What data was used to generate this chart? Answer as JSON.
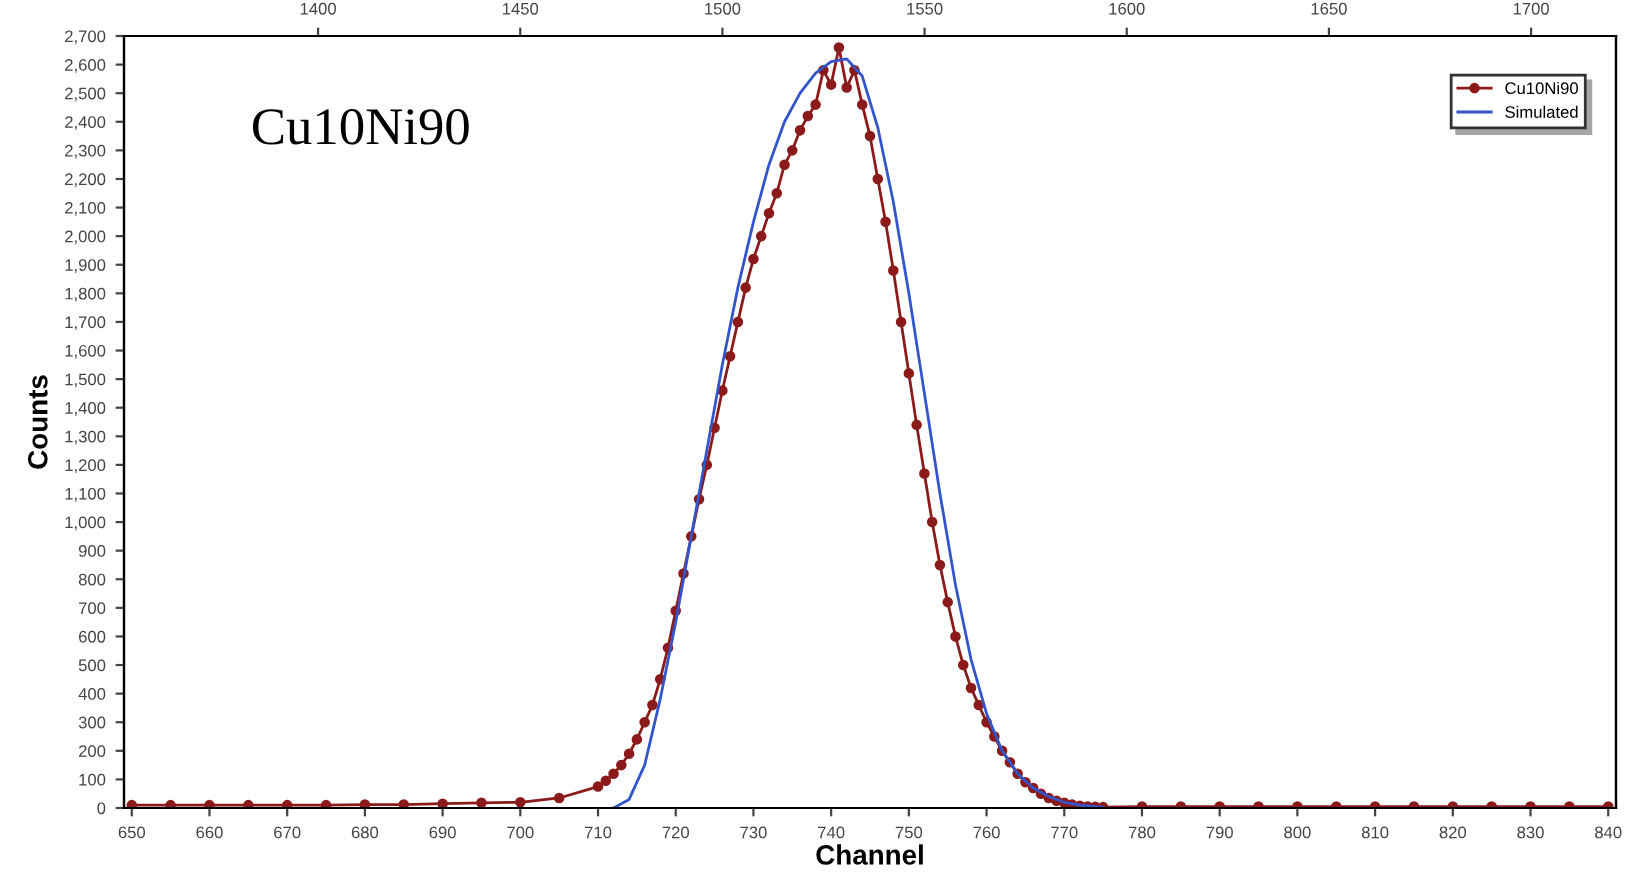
{
  "chart_data": {
    "type": "line",
    "xlabel": "Channel",
    "ylabel": "Counts",
    "annotations": [
      "Cu10Ni90"
    ],
    "xlim": [
      649,
      841
    ],
    "xticks": [
      650,
      660,
      670,
      680,
      690,
      700,
      710,
      720,
      730,
      740,
      750,
      760,
      770,
      780,
      790,
      800,
      810,
      820,
      830,
      840
    ],
    "x2lim": [
      1352,
      1721
    ],
    "x2ticks": [
      1400,
      1450,
      1500,
      1550,
      1600,
      1650,
      1700
    ],
    "ylim": [
      0,
      2700
    ],
    "yticks": [
      0,
      100,
      200,
      300,
      400,
      500,
      600,
      700,
      800,
      900,
      {
        "value": 1000,
        "label": "1,000"
      },
      {
        "value": 1100,
        "label": "1,100"
      },
      {
        "value": 1200,
        "label": "1,200"
      },
      {
        "value": 1300,
        "label": "1,300"
      },
      {
        "value": 1400,
        "label": "1,400"
      },
      {
        "value": 1500,
        "label": "1,500"
      },
      {
        "value": 1600,
        "label": "1,600"
      },
      {
        "value": 1700,
        "label": "1,700"
      },
      {
        "value": 1800,
        "label": "1,800"
      },
      {
        "value": 1900,
        "label": "1,900"
      },
      {
        "value": 2000,
        "label": "2,000"
      },
      {
        "value": 2100,
        "label": "2,100"
      },
      {
        "value": 2200,
        "label": "2,200"
      },
      {
        "value": 2300,
        "label": "2,300"
      },
      {
        "value": 2400,
        "label": "2,400"
      },
      {
        "value": 2500,
        "label": "2,500"
      },
      {
        "value": 2600,
        "label": "2,600"
      },
      {
        "value": 2700,
        "label": "2,700"
      }
    ],
    "grid": false,
    "legend": "top right",
    "series": [
      {
        "name": "Cu10Ni90",
        "color": "#8b1a1a",
        "marker": "circle",
        "x": [
          650,
          655,
          660,
          665,
          670,
          675,
          680,
          685,
          690,
          695,
          700,
          705,
          710,
          711,
          712,
          713,
          714,
          715,
          716,
          717,
          718,
          719,
          720,
          721,
          722,
          723,
          724,
          725,
          726,
          727,
          728,
          729,
          730,
          731,
          732,
          733,
          734,
          735,
          736,
          737,
          738,
          739,
          740,
          741,
          742,
          743,
          744,
          745,
          746,
          747,
          748,
          749,
          750,
          751,
          752,
          753,
          754,
          755,
          756,
          757,
          758,
          759,
          760,
          761,
          762,
          763,
          764,
          765,
          766,
          767,
          768,
          769,
          770,
          771,
          772,
          773,
          774,
          775,
          780,
          785,
          790,
          795,
          800,
          805,
          810,
          815,
          820,
          825,
          830,
          835,
          840
        ],
        "values": [
          10,
          10,
          10,
          10,
          10,
          10,
          12,
          12,
          15,
          18,
          20,
          35,
          75,
          95,
          120,
          150,
          190,
          240,
          300,
          360,
          450,
          560,
          690,
          820,
          950,
          1080,
          1200,
          1330,
          1460,
          1580,
          1700,
          1820,
          1920,
          2000,
          2080,
          2150,
          2250,
          2300,
          2370,
          2420,
          2460,
          2580,
          2530,
          2660,
          2520,
          2580,
          2460,
          2350,
          2200,
          2050,
          1880,
          1700,
          1520,
          1340,
          1170,
          1000,
          850,
          720,
          600,
          500,
          420,
          360,
          300,
          250,
          200,
          160,
          120,
          90,
          70,
          50,
          35,
          25,
          18,
          12,
          8,
          5,
          4,
          3,
          5,
          5,
          5,
          5,
          5,
          5,
          5,
          5,
          5,
          5,
          5,
          5,
          5
        ]
      },
      {
        "name": "Simulated",
        "color": "#3355cc",
        "marker": "none",
        "x": [
          712,
          714,
          716,
          718,
          720,
          722,
          724,
          726,
          728,
          730,
          732,
          734,
          736,
          738,
          740,
          742,
          744,
          746,
          748,
          750,
          752,
          754,
          756,
          758,
          760,
          762,
          764,
          766,
          768,
          770,
          772,
          775
        ],
        "values": [
          0,
          30,
          150,
          380,
          650,
          950,
          1250,
          1550,
          1820,
          2050,
          2250,
          2400,
          2500,
          2570,
          2610,
          2620,
          2560,
          2380,
          2120,
          1800,
          1450,
          1100,
          780,
          520,
          330,
          200,
          120,
          70,
          40,
          20,
          10,
          3
        ]
      }
    ]
  }
}
